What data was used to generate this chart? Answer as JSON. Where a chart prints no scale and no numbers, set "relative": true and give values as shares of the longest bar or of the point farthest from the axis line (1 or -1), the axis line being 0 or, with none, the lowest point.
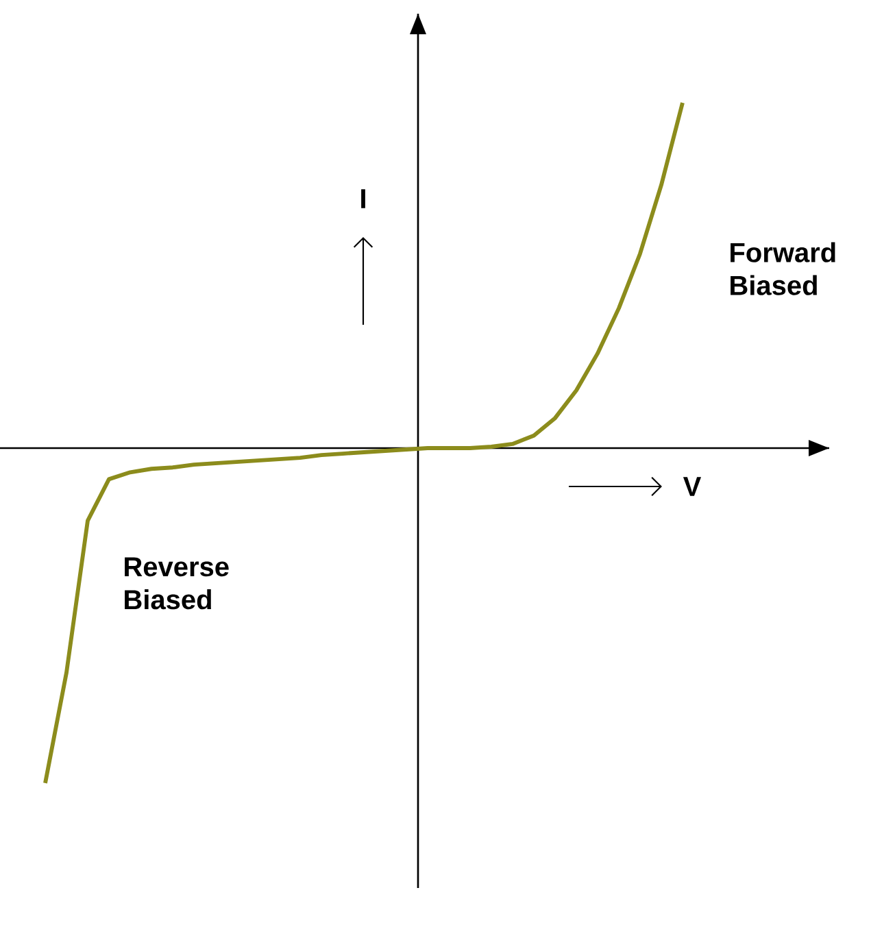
{
  "chart_data": {
    "type": "line",
    "relative": true,
    "xlabel": "V",
    "ylabel": "I",
    "annotations": [
      "Forward Biased",
      "Reverse Biased"
    ],
    "categories": [
      null,
      null,
      null,
      null,
      null,
      null,
      null,
      null,
      null,
      null,
      null,
      null,
      null,
      null,
      null,
      null,
      null,
      null,
      null,
      null,
      null,
      null,
      null,
      null,
      null,
      null,
      null,
      null,
      null,
      null,
      null
    ],
    "series": [
      {
        "color": "#8c8c1c",
        "values": [
          -0.97,
          -0.65,
          -0.21,
          -0.09,
          -0.07,
          -0.06,
          -0.056,
          -0.048,
          -0.044,
          -0.04,
          -0.036,
          -0.032,
          -0.028,
          -0.02,
          -0.016,
          -0.012,
          -0.008,
          -0.004,
          0,
          0,
          0,
          0.004,
          0.012,
          0.036,
          0.087,
          0.167,
          0.274,
          0.405,
          0.563,
          0.762,
          1
        ]
      }
    ]
  }
}
